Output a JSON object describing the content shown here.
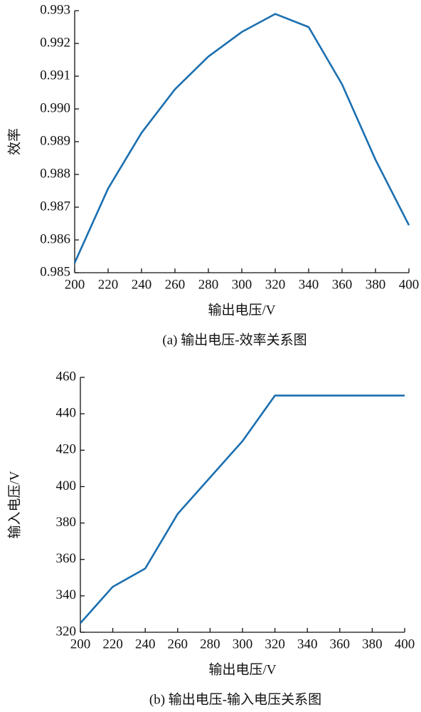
{
  "chart_data": [
    {
      "type": "line",
      "caption": "(a) 输出电压-效率关系图",
      "x_label": "输出电压/V",
      "y_label": "效率",
      "x": [
        200,
        220,
        240,
        260,
        280,
        300,
        320,
        340,
        360,
        380,
        400
      ],
      "series": [
        {
          "color": "#1b6fb0",
          "values": [
            0.9853,
            0.98757,
            0.98927,
            0.9906,
            0.9916,
            0.99235,
            0.9929,
            0.9925,
            0.99075,
            0.98845,
            0.98645
          ]
        }
      ],
      "xlim": [
        200,
        400
      ],
      "xticks": [
        200,
        220,
        240,
        260,
        280,
        300,
        320,
        340,
        360,
        380,
        400
      ],
      "ylim": [
        0.985,
        0.993
      ],
      "yticks": [
        0.985,
        0.986,
        0.987,
        0.988,
        0.989,
        {
          "value": 0.99,
          "label": "0.990"
        },
        0.991,
        0.992,
        0.993
      ]
    },
    {
      "type": "line",
      "caption": "(b) 输出电压-输入电压关系图",
      "x_label": "输出电压/V",
      "y_label": "输入电压/V",
      "x": [
        200,
        220,
        240,
        260,
        280,
        300,
        320,
        340,
        360,
        380,
        400
      ],
      "series": [
        {
          "color": "#1b6fb0",
          "values": [
            325,
            345,
            355,
            385,
            405,
            425,
            450,
            450,
            450,
            450,
            450
          ]
        }
      ],
      "xlim": [
        200,
        400
      ],
      "xticks": [
        200,
        220,
        240,
        260,
        280,
        300,
        320,
        340,
        360,
        380,
        400
      ],
      "ylim": [
        320,
        460
      ],
      "yticks": [
        320,
        340,
        360,
        380,
        400,
        420,
        440,
        460
      ]
    }
  ]
}
